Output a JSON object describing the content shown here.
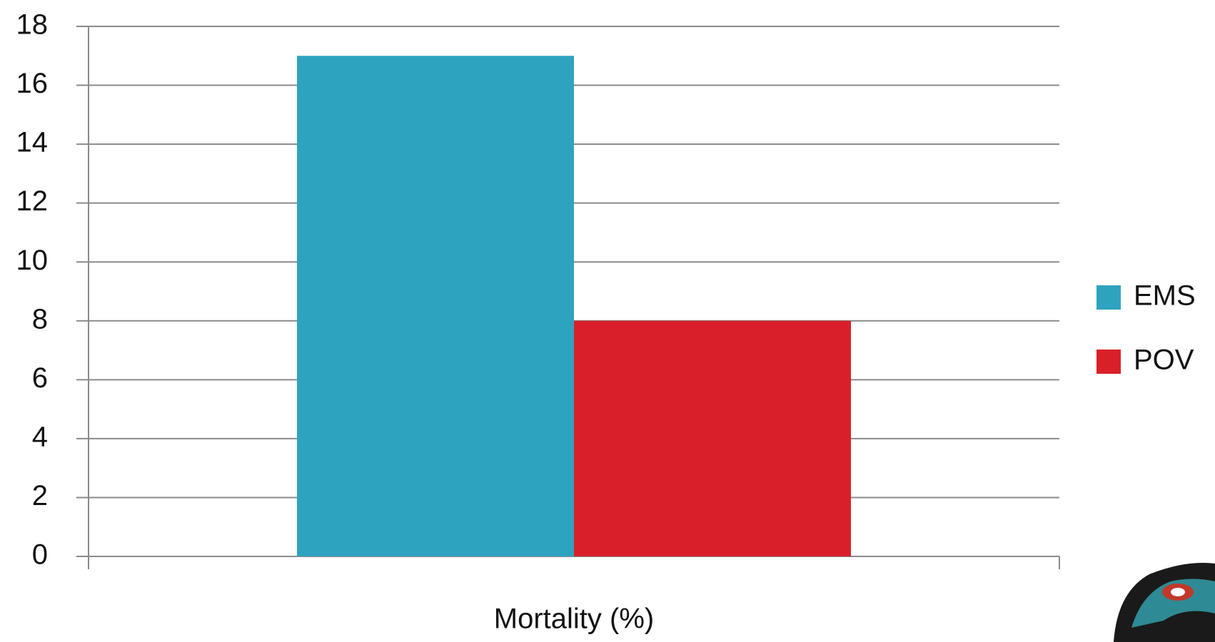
{
  "chart_data": {
    "type": "bar",
    "categories": [
      "Mortality (%)"
    ],
    "series": [
      {
        "name": "EMS",
        "color": "#2ea3bf",
        "values": [
          17
        ]
      },
      {
        "name": "POV",
        "color": "#d9202a",
        "values": [
          8
        ]
      }
    ],
    "ylim": [
      0,
      18
    ],
    "yticks": [
      0,
      2,
      4,
      6,
      8,
      10,
      12,
      14,
      16,
      18
    ],
    "grid": true,
    "legend": "right"
  }
}
